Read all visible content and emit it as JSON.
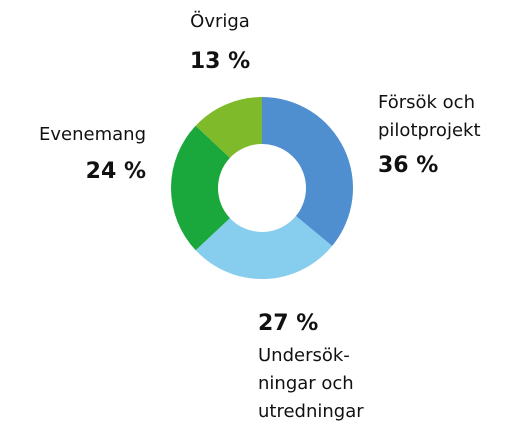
{
  "chart_data": {
    "type": "donut",
    "categories": [
      [
        "Försök och",
        "pilotprojekt"
      ],
      [
        "Undersök-",
        "ningar och",
        "utredningar"
      ],
      [
        "Evenemang"
      ],
      [
        "Övriga"
      ]
    ],
    "values": [
      36,
      27,
      24,
      13
    ],
    "value_labels": [
      "36 %",
      "27 %",
      "24 %",
      "13 %"
    ],
    "colors": [
      "#4f8fcf",
      "#87cdee",
      "#1aa83c",
      "#7fba2a"
    ]
  }
}
